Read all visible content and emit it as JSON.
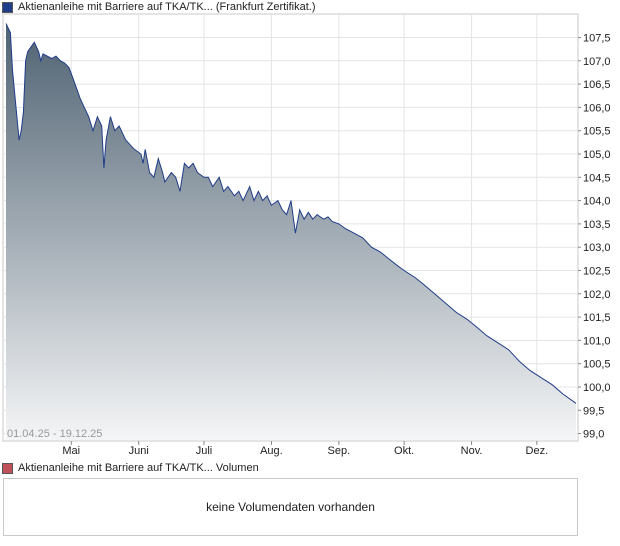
{
  "price_legend": {
    "label": "Aktienanleihe mit Barriere auf TKA/TK... (Frankfurt Zertifikat.)",
    "color": "#1f3c88"
  },
  "volume_legend": {
    "label": "Aktienanleihe mit Barriere auf TKA/TK... Volumen",
    "color": "#c0505a"
  },
  "date_range": "01.04.25 - 19.12.25",
  "volume_panel": {
    "message": "keine Volumendaten vorhanden"
  },
  "chart_data": {
    "type": "area",
    "title": "",
    "xlabel": "",
    "ylabel": "",
    "ylim": [
      99.0,
      108.0
    ],
    "y_ticks": [
      "107,5",
      "107,0",
      "106,5",
      "106,0",
      "105,5",
      "105,0",
      "104,5",
      "104,0",
      "103,5",
      "103,0",
      "102,5",
      "102,0",
      "101,5",
      "101,0",
      "100,5",
      "100,0",
      "99,5",
      "99,0"
    ],
    "y_tick_values": [
      107.5,
      107.0,
      106.5,
      106.0,
      105.5,
      105.0,
      104.5,
      104.0,
      103.5,
      103.0,
      102.5,
      102.0,
      101.5,
      101.0,
      100.5,
      100.0,
      99.5,
      99.0
    ],
    "x_start": "2025-04-01",
    "x_end": "2025-12-19",
    "month_ticks": [
      {
        "label": "Mai",
        "date": "2025-05-01"
      },
      {
        "label": "Juni",
        "date": "2025-06-01"
      },
      {
        "label": "Juli",
        "date": "2025-07-01"
      },
      {
        "label": "Aug.",
        "date": "2025-08-01"
      },
      {
        "label": "Sep.",
        "date": "2025-09-01"
      },
      {
        "label": "Okt.",
        "date": "2025-10-01"
      },
      {
        "label": "Nov.",
        "date": "2025-11-01"
      },
      {
        "label": "Dez.",
        "date": "2025-12-01"
      }
    ],
    "grid": true,
    "series": [
      {
        "line_color": "#1f3c88",
        "fill_top": "#4f6272",
        "fill_bottom": "#f4f5f6",
        "points": [
          {
            "x": "2025-04-01",
            "y": 107.8
          },
          {
            "x": "2025-04-03",
            "y": 107.6
          },
          {
            "x": "2025-04-04",
            "y": 106.8
          },
          {
            "x": "2025-04-07",
            "y": 105.3
          },
          {
            "x": "2025-04-08",
            "y": 105.5
          },
          {
            "x": "2025-04-09",
            "y": 105.9
          },
          {
            "x": "2025-04-10",
            "y": 107.0
          },
          {
            "x": "2025-04-11",
            "y": 107.2
          },
          {
            "x": "2025-04-14",
            "y": 107.4
          },
          {
            "x": "2025-04-16",
            "y": 107.2
          },
          {
            "x": "2025-04-17",
            "y": 107.0
          },
          {
            "x": "2025-04-18",
            "y": 107.15
          },
          {
            "x": "2025-04-22",
            "y": 107.05
          },
          {
            "x": "2025-04-24",
            "y": 107.1
          },
          {
            "x": "2025-04-26",
            "y": 107.0
          },
          {
            "x": "2025-04-28",
            "y": 106.95
          },
          {
            "x": "2025-04-30",
            "y": 106.85
          },
          {
            "x": "2025-05-02",
            "y": 106.6
          },
          {
            "x": "2025-05-05",
            "y": 106.2
          },
          {
            "x": "2025-05-07",
            "y": 106.0
          },
          {
            "x": "2025-05-09",
            "y": 105.8
          },
          {
            "x": "2025-05-11",
            "y": 105.5
          },
          {
            "x": "2025-05-13",
            "y": 105.8
          },
          {
            "x": "2025-05-15",
            "y": 105.6
          },
          {
            "x": "2025-05-16",
            "y": 104.7
          },
          {
            "x": "2025-05-17",
            "y": 105.3
          },
          {
            "x": "2025-05-19",
            "y": 105.8
          },
          {
            "x": "2025-05-21",
            "y": 105.5
          },
          {
            "x": "2025-05-23",
            "y": 105.6
          },
          {
            "x": "2025-05-26",
            "y": 105.3
          },
          {
            "x": "2025-05-28",
            "y": 105.2
          },
          {
            "x": "2025-05-30",
            "y": 105.1
          },
          {
            "x": "2025-06-02",
            "y": 105.0
          },
          {
            "x": "2025-06-03",
            "y": 104.8
          },
          {
            "x": "2025-06-04",
            "y": 105.1
          },
          {
            "x": "2025-06-06",
            "y": 104.6
          },
          {
            "x": "2025-06-08",
            "y": 104.5
          },
          {
            "x": "2025-06-10",
            "y": 104.9
          },
          {
            "x": "2025-06-12",
            "y": 104.6
          },
          {
            "x": "2025-06-13",
            "y": 104.4
          },
          {
            "x": "2025-06-16",
            "y": 104.6
          },
          {
            "x": "2025-06-18",
            "y": 104.5
          },
          {
            "x": "2025-06-20",
            "y": 104.2
          },
          {
            "x": "2025-06-22",
            "y": 104.8
          },
          {
            "x": "2025-06-24",
            "y": 104.7
          },
          {
            "x": "2025-06-26",
            "y": 104.8
          },
          {
            "x": "2025-06-28",
            "y": 104.6
          },
          {
            "x": "2025-07-01",
            "y": 104.5
          },
          {
            "x": "2025-07-03",
            "y": 104.5
          },
          {
            "x": "2025-07-05",
            "y": 104.3
          },
          {
            "x": "2025-07-08",
            "y": 104.5
          },
          {
            "x": "2025-07-10",
            "y": 104.2
          },
          {
            "x": "2025-07-12",
            "y": 104.3
          },
          {
            "x": "2025-07-15",
            "y": 104.1
          },
          {
            "x": "2025-07-17",
            "y": 104.2
          },
          {
            "x": "2025-07-19",
            "y": 104.0
          },
          {
            "x": "2025-07-22",
            "y": 104.3
          },
          {
            "x": "2025-07-24",
            "y": 104.0
          },
          {
            "x": "2025-07-26",
            "y": 104.2
          },
          {
            "x": "2025-07-28",
            "y": 104.0
          },
          {
            "x": "2025-07-30",
            "y": 104.1
          },
          {
            "x": "2025-08-01",
            "y": 103.9
          },
          {
            "x": "2025-08-04",
            "y": 104.0
          },
          {
            "x": "2025-08-06",
            "y": 103.8
          },
          {
            "x": "2025-08-08",
            "y": 103.7
          },
          {
            "x": "2025-08-10",
            "y": 104.0
          },
          {
            "x": "2025-08-12",
            "y": 103.3
          },
          {
            "x": "2025-08-14",
            "y": 103.8
          },
          {
            "x": "2025-08-16",
            "y": 103.6
          },
          {
            "x": "2025-08-18",
            "y": 103.75
          },
          {
            "x": "2025-08-20",
            "y": 103.6
          },
          {
            "x": "2025-08-22",
            "y": 103.7
          },
          {
            "x": "2025-08-25",
            "y": 103.6
          },
          {
            "x": "2025-08-27",
            "y": 103.65
          },
          {
            "x": "2025-08-29",
            "y": 103.55
          },
          {
            "x": "2025-09-01",
            "y": 103.5
          },
          {
            "x": "2025-09-04",
            "y": 103.4
          },
          {
            "x": "2025-09-08",
            "y": 103.3
          },
          {
            "x": "2025-09-12",
            "y": 103.2
          },
          {
            "x": "2025-09-16",
            "y": 103.0
          },
          {
            "x": "2025-09-20",
            "y": 102.9
          },
          {
            "x": "2025-09-24",
            "y": 102.75
          },
          {
            "x": "2025-09-28",
            "y": 102.6
          },
          {
            "x": "2025-10-01",
            "y": 102.5
          },
          {
            "x": "2025-10-06",
            "y": 102.35
          },
          {
            "x": "2025-10-10",
            "y": 102.2
          },
          {
            "x": "2025-10-15",
            "y": 102.0
          },
          {
            "x": "2025-10-20",
            "y": 101.8
          },
          {
            "x": "2025-10-25",
            "y": 101.6
          },
          {
            "x": "2025-10-30",
            "y": 101.45
          },
          {
            "x": "2025-11-03",
            "y": 101.3
          },
          {
            "x": "2025-11-08",
            "y": 101.1
          },
          {
            "x": "2025-11-13",
            "y": 100.95
          },
          {
            "x": "2025-11-18",
            "y": 100.8
          },
          {
            "x": "2025-11-23",
            "y": 100.55
          },
          {
            "x": "2025-11-28",
            "y": 100.35
          },
          {
            "x": "2025-12-03",
            "y": 100.2
          },
          {
            "x": "2025-12-08",
            "y": 100.05
          },
          {
            "x": "2025-12-13",
            "y": 99.85
          },
          {
            "x": "2025-12-19",
            "y": 99.65
          }
        ]
      }
    ]
  }
}
